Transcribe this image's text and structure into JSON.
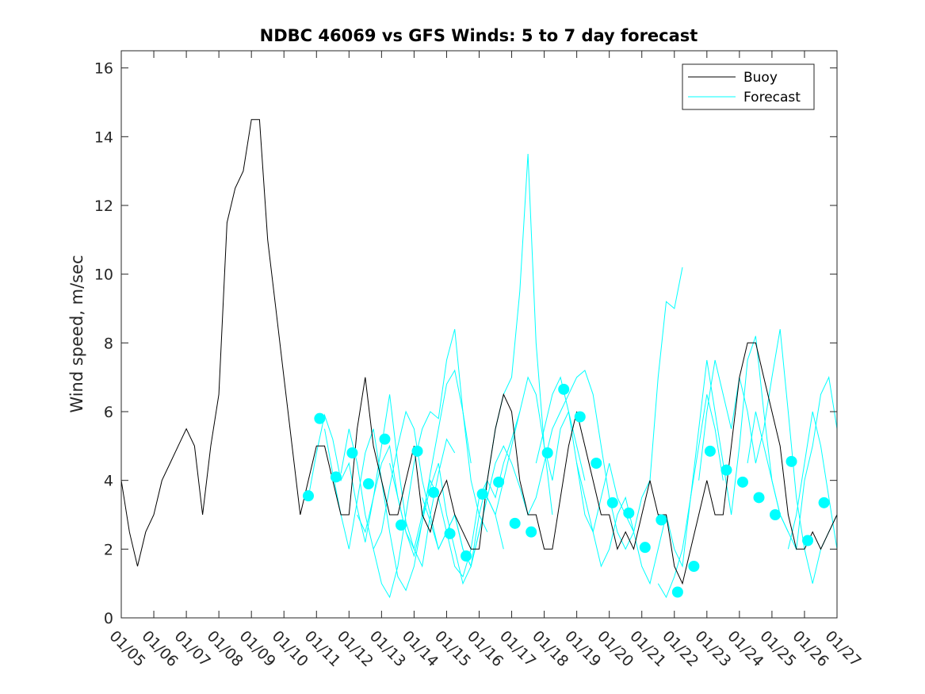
{
  "chart_data": {
    "type": "line",
    "title": "NDBC 46069 vs GFS Winds: 5 to 7 day forecast",
    "xlabel": "",
    "ylabel": "Wind speed, m/sec",
    "xlim": [
      0,
      22
    ],
    "ylim": [
      0,
      16.5
    ],
    "x_tick_values": [
      0,
      1,
      2,
      3,
      4,
      5,
      6,
      7,
      8,
      9,
      10,
      11,
      12,
      13,
      14,
      15,
      16,
      17,
      18,
      19,
      20,
      21,
      22
    ],
    "x_tick_labels": [
      "01/05",
      "01/06",
      "01/07",
      "01/08",
      "01/09",
      "01/10",
      "01/11",
      "01/12",
      "01/13",
      "01/14",
      "01/15",
      "01/16",
      "01/17",
      "01/18",
      "01/19",
      "01/20",
      "01/21",
      "01/22",
      "01/23",
      "01/24",
      "01/25",
      "01/26",
      "01/27"
    ],
    "y_tick_values": [
      0,
      2,
      4,
      6,
      8,
      10,
      12,
      14,
      16
    ],
    "y_tick_labels": [
      "0",
      "2",
      "4",
      "6",
      "8",
      "10",
      "12",
      "14",
      "16"
    ],
    "legend": {
      "position": "top-right",
      "entries": [
        "Buoy",
        "Forecast"
      ]
    },
    "colors": {
      "buoy": "#000000",
      "forecast": "#00ffff",
      "axes": "#262626"
    },
    "series": [
      {
        "name": "Buoy",
        "x": [
          0,
          0.25,
          0.5,
          0.75,
          1,
          1.25,
          1.5,
          1.75,
          2,
          2.25,
          2.5,
          2.75,
          3,
          3.25,
          3.5,
          3.75,
          4,
          4.25,
          4.5,
          4.75,
          5,
          5.25,
          5.5,
          5.75,
          6,
          6.25,
          6.5,
          6.75,
          7,
          7.25,
          7.5,
          7.75,
          8,
          8.25,
          8.5,
          8.75,
          9,
          9.25,
          9.5,
          9.75,
          10,
          10.25,
          10.5,
          10.75,
          11,
          11.25,
          11.5,
          11.75,
          12,
          12.25,
          12.5,
          12.75,
          13,
          13.25,
          13.5,
          13.75,
          14,
          14.25,
          14.5,
          14.75,
          15,
          15.25,
          15.5,
          15.75,
          16,
          16.25,
          16.5,
          16.75,
          17,
          17.25,
          17.5,
          17.75,
          18,
          18.25,
          18.5,
          18.75,
          19,
          19.25,
          19.5,
          19.75,
          20,
          20.25,
          20.5,
          20.75,
          21,
          21.25,
          21.5,
          21.75,
          22
        ],
        "values": [
          4,
          2.5,
          1.5,
          2.5,
          3,
          4,
          4.5,
          5,
          5.5,
          5,
          3,
          5,
          6.5,
          11.5,
          12.5,
          13,
          14.5,
          14.5,
          11,
          9,
          7,
          5,
          3,
          4,
          5,
          5,
          4,
          3,
          3,
          5.5,
          7,
          5,
          4,
          3,
          3,
          4,
          5,
          3,
          2.5,
          3.5,
          4,
          3,
          2.5,
          2,
          2,
          4,
          5.5,
          6.5,
          6,
          4,
          3,
          3,
          2,
          2,
          3.5,
          5,
          6,
          5,
          4,
          3,
          3,
          2,
          2.5,
          2,
          3,
          4,
          3,
          3,
          1.5,
          1,
          2,
          3,
          4,
          3,
          3,
          5,
          7,
          8,
          8,
          7,
          6,
          5,
          3,
          2,
          2,
          2.5,
          2,
          2.5,
          3
        ]
      }
    ],
    "forecast_points": {
      "x": [
        5.75,
        6.1,
        6.6,
        7.1,
        7.6,
        8.1,
        8.6,
        9.1,
        9.6,
        10.1,
        10.6,
        11.1,
        11.6,
        12.1,
        12.6,
        13.1,
        13.6,
        14.1,
        14.6,
        15.1,
        15.6,
        16.1,
        16.6,
        17.1,
        17.6,
        18.1,
        18.6,
        19.1,
        19.6,
        20.1,
        20.6,
        21.1,
        21.6
      ],
      "values": [
        3.55,
        5.8,
        4.1,
        4.8,
        3.9,
        5.2,
        2.7,
        4.85,
        3.65,
        2.45,
        1.8,
        3.6,
        3.95,
        2.75,
        2.5,
        4.8,
        6.65,
        5.85,
        4.5,
        3.35,
        3.05,
        2.05,
        2.85,
        0.75,
        1.5,
        4.85,
        4.3,
        3.95,
        3.5,
        3.0,
        4.55,
        2.25,
        3.35
      ]
    },
    "forecast_runs": [
      {
        "x": [
          5.75,
          6.0,
          6.25,
          6.5,
          6.75,
          7.0,
          7.25,
          7.5,
          7.75,
          8.0,
          8.25,
          8.5,
          8.75,
          9.0,
          9.25,
          9.5,
          9.75,
          10.0,
          10.25
        ],
        "values": [
          3.5,
          4.8,
          5.9,
          5.2,
          4.0,
          4.5,
          3.2,
          2.2,
          3.5,
          5.0,
          6.5,
          4.5,
          2.8,
          2.0,
          1.5,
          3.0,
          4.2,
          5.2,
          4.8
        ]
      },
      {
        "x": [
          6.25,
          6.5,
          6.75,
          7.0,
          7.25,
          7.5,
          7.75,
          8.0,
          8.25,
          8.5,
          8.75,
          9.0,
          9.25,
          9.5,
          9.75,
          10.0,
          10.25,
          10.5,
          10.75
        ],
        "values": [
          5.5,
          4.2,
          3.0,
          2.0,
          3.4,
          4.8,
          5.5,
          4.0,
          2.5,
          1.2,
          0.8,
          1.5,
          2.8,
          4.2,
          5.5,
          6.8,
          7.2,
          6.0,
          4.5
        ]
      },
      {
        "x": [
          6.75,
          7.0,
          7.25,
          7.5,
          7.75,
          8.0,
          8.25,
          8.5,
          8.75,
          9.0,
          9.25,
          9.5,
          9.75,
          10.0,
          10.25,
          10.5,
          10.75,
          11.0,
          11.25
        ],
        "values": [
          4.2,
          5.5,
          4.5,
          3.0,
          2.0,
          1.0,
          0.6,
          1.5,
          3.0,
          4.5,
          5.5,
          6.0,
          5.8,
          7.5,
          8.4,
          6.0,
          4.0,
          3.0,
          2.5
        ]
      },
      {
        "x": [
          7.25,
          7.5,
          7.75,
          8.0,
          8.25,
          8.5,
          8.75,
          9.0,
          9.25,
          9.5,
          9.75,
          10.0,
          10.25,
          10.5,
          10.75,
          11.0,
          11.25,
          11.5,
          11.75
        ],
        "values": [
          3.0,
          2.5,
          3.5,
          4.5,
          5.0,
          3.5,
          2.5,
          1.8,
          2.8,
          3.8,
          4.5,
          3.0,
          2.0,
          1.0,
          1.5,
          2.5,
          3.5,
          3.0,
          2.0
        ]
      },
      {
        "x": [
          7.75,
          8.0,
          8.25,
          8.5,
          8.75,
          9.0,
          9.25,
          9.5,
          9.75,
          10.0,
          10.25,
          10.5,
          10.75,
          11.0,
          11.25,
          11.5,
          11.75,
          12.0,
          12.25
        ],
        "values": [
          2.0,
          2.5,
          3.8,
          5.0,
          6.0,
          5.5,
          4.0,
          3.0,
          2.0,
          2.5,
          3.0,
          2.0,
          1.5,
          2.5,
          3.5,
          3.0,
          4.0,
          5.0,
          6.0
        ]
      },
      {
        "x": [
          8.25,
          8.5,
          8.75,
          9.0,
          9.25,
          9.5,
          9.75,
          10.0,
          10.25,
          10.5,
          10.75,
          11.0,
          11.25,
          11.5,
          11.75,
          12.0,
          12.25,
          12.5,
          12.75,
          13.0,
          13.25
        ],
        "values": [
          4.5,
          3.5,
          2.5,
          2.0,
          3.0,
          4.0,
          3.5,
          2.5,
          1.5,
          1.2,
          2.0,
          3.5,
          4.0,
          5.5,
          6.5,
          7.0,
          9.5,
          13.5,
          8.0,
          5.0,
          3.0
        ]
      },
      {
        "x": [
          9.25,
          9.5,
          9.75,
          10.0,
          10.25,
          10.5,
          10.75,
          11.0,
          11.25,
          11.5,
          11.75,
          12.0,
          12.25,
          12.5,
          12.75,
          13.0,
          13.25,
          13.5,
          13.75,
          14.0,
          14.25
        ],
        "values": [
          3.5,
          2.8,
          2.0,
          2.5,
          3.0,
          2.0,
          1.5,
          3.0,
          4.0,
          3.5,
          4.5,
          5.2,
          6.0,
          7.0,
          6.5,
          5.0,
          4.0,
          5.5,
          6.0,
          5.0,
          4.0
        ]
      },
      {
        "x": [
          11.25,
          11.5,
          11.75,
          12.0,
          12.25,
          12.5,
          12.75,
          13.0,
          13.25,
          13.5,
          13.75,
          14.0,
          14.25,
          14.5,
          14.75,
          15.0,
          15.25,
          15.5,
          15.75
        ],
        "values": [
          3.5,
          4.5,
          5.0,
          4.5,
          3.8,
          3.0,
          3.5,
          4.5,
          5.5,
          6.0,
          6.5,
          7.0,
          7.2,
          6.5,
          5.0,
          3.5,
          2.5,
          2.0,
          2.5
        ]
      },
      {
        "x": [
          12.75,
          13.0,
          13.25,
          13.5,
          13.75,
          14.0,
          14.25,
          14.5,
          14.75,
          15.0,
          15.25,
          15.5,
          15.75,
          16.0,
          16.25,
          16.5,
          16.75,
          17.0,
          17.25
        ],
        "values": [
          4.5,
          5.5,
          6.5,
          7.0,
          6.0,
          4.5,
          3.0,
          2.5,
          3.5,
          4.5,
          3.5,
          3.0,
          2.5,
          3.5,
          4.0,
          7.0,
          9.2,
          9.0,
          10.2
        ]
      },
      {
        "x": [
          14.0,
          14.25,
          14.5,
          14.75,
          15.0,
          15.25,
          15.5,
          15.75,
          16.0,
          16.25,
          16.5,
          16.75,
          17.0,
          17.25,
          17.5,
          17.75,
          18.0,
          18.25,
          18.5
        ],
        "values": [
          4.5,
          3.5,
          2.5,
          1.5,
          2.0,
          3.0,
          3.5,
          2.5,
          1.5,
          1.0,
          2.0,
          3.0,
          2.0,
          1.5,
          3.5,
          5.0,
          6.5,
          5.5,
          4.0
        ]
      },
      {
        "x": [
          16.5,
          16.75,
          17.0,
          17.25,
          17.5,
          17.75,
          18.0,
          18.25,
          18.5,
          18.75,
          19.0,
          19.25,
          19.5,
          19.75,
          20.0,
          20.25,
          20.5
        ],
        "values": [
          1.0,
          0.6,
          1.2,
          2.0,
          3.5,
          5.5,
          7.5,
          6.0,
          4.5,
          3.0,
          5.0,
          7.5,
          8.2,
          6.0,
          4.0,
          3.0,
          2.5
        ]
      },
      {
        "x": [
          17.75,
          18.0,
          18.25,
          18.5,
          18.75,
          19.0,
          19.25,
          19.5,
          19.75,
          20.0,
          20.25,
          20.5,
          20.75,
          21.0,
          21.25,
          21.5,
          21.75,
          22.0
        ],
        "values": [
          4.0,
          6.0,
          7.5,
          6.5,
          5.5,
          7.0,
          6.0,
          4.5,
          5.5,
          7.0,
          8.4,
          6.0,
          3.5,
          2.0,
          1.0,
          2.0,
          2.5,
          3.0
        ]
      },
      {
        "x": [
          19.25,
          19.5,
          19.75,
          20.0,
          20.25,
          20.5,
          20.75,
          21.0,
          21.25,
          21.5,
          21.75,
          22.0
        ],
        "values": [
          4.5,
          6.0,
          5.0,
          4.0,
          3.0,
          2.5,
          2.0,
          4.0,
          5.0,
          6.5,
          7.0,
          5.5
        ]
      },
      {
        "x": [
          20.5,
          20.75,
          21.0,
          21.25,
          21.5,
          21.75,
          22.0
        ],
        "values": [
          2.0,
          3.0,
          4.5,
          6.0,
          5.0,
          3.5,
          2.0
        ]
      }
    ]
  }
}
